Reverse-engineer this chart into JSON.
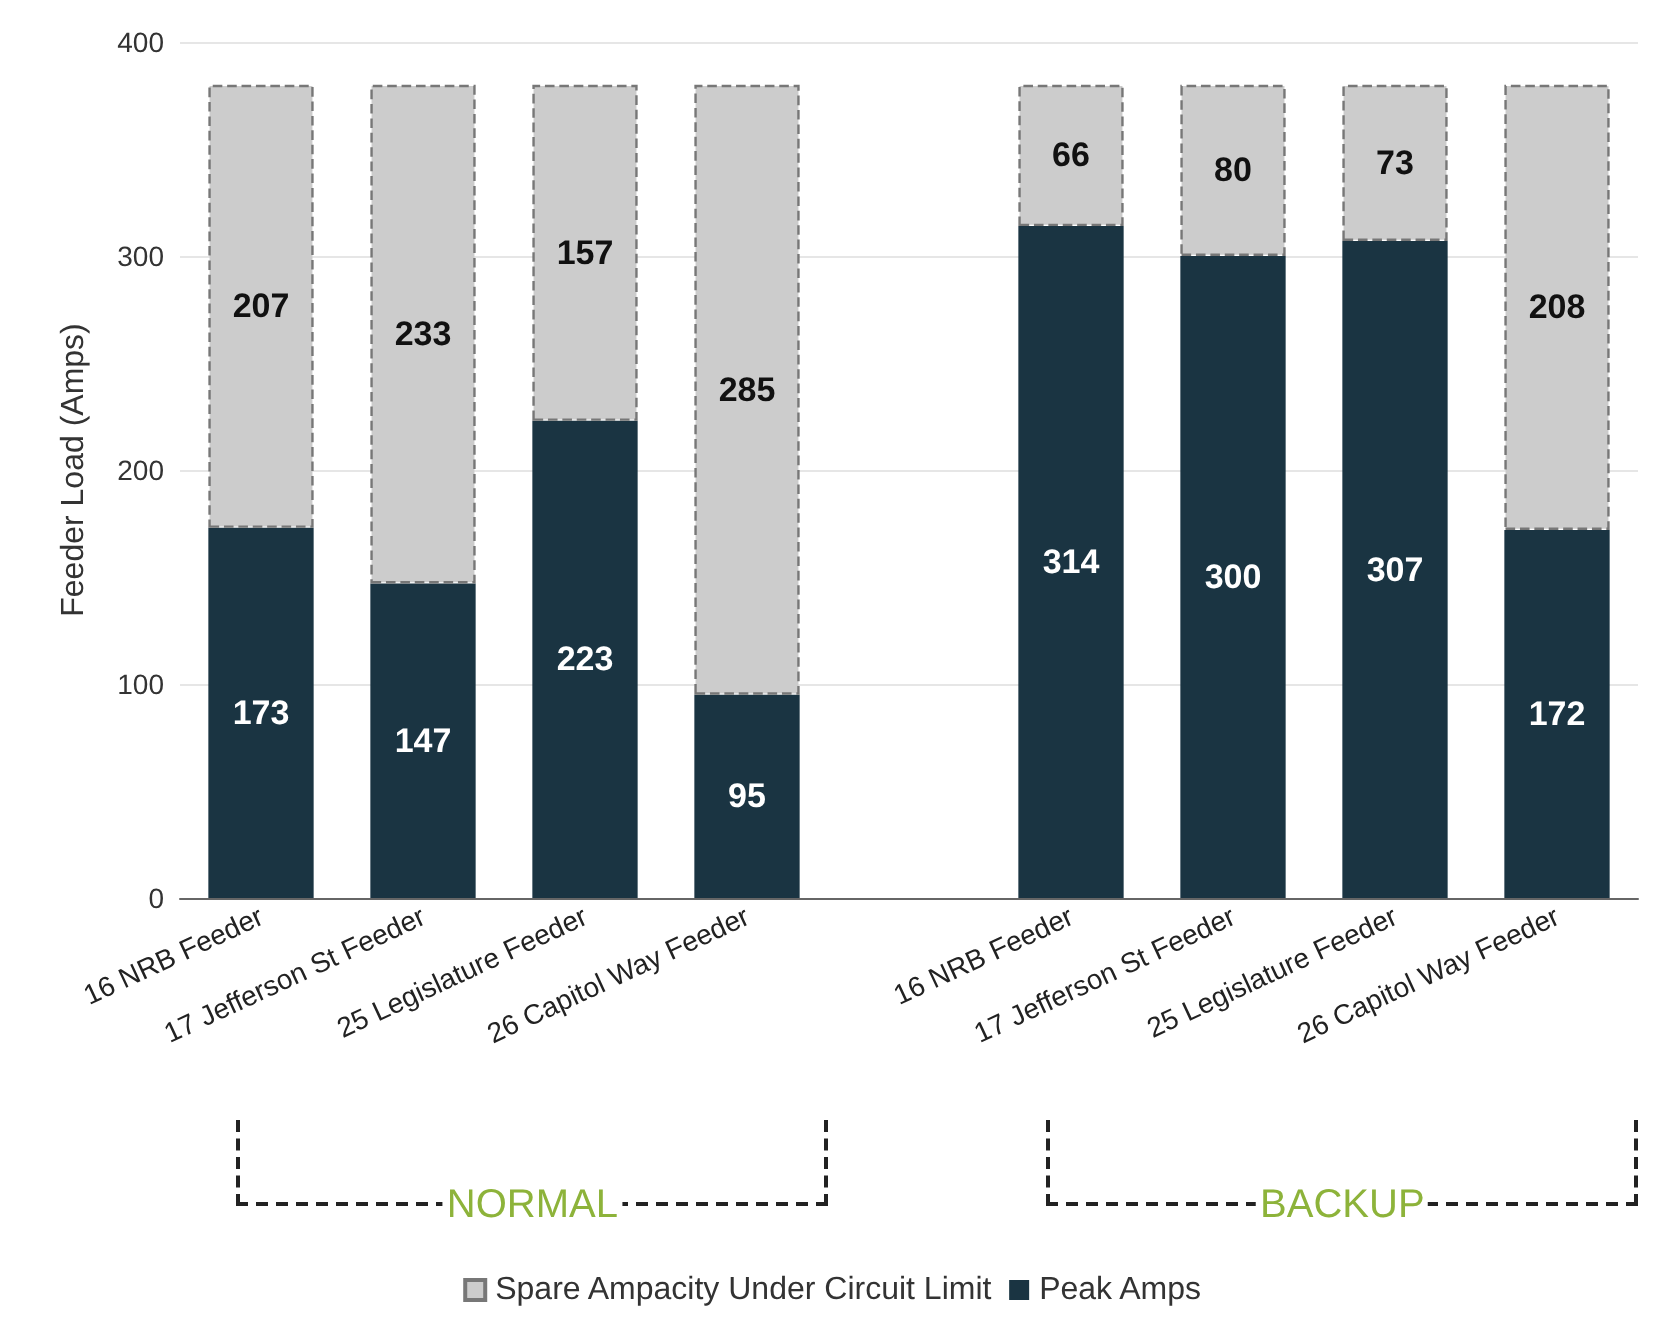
{
  "chart_data": {
    "type": "bar",
    "stacked": true,
    "ylabel": "Feeder Load (Amps)",
    "categories": [
      "16 NRB Feeder",
      "17 Jefferson St Feeder",
      "25 Legislature Feeder",
      "26 Capitol Way Feeder",
      null,
      "16 NRB Feeder",
      "17 Jefferson St Feeder",
      "25 Legislature Feeder",
      "26 Capitol Way Feeder"
    ],
    "series": [
      {
        "name": "Peak Amps",
        "color": "#1a3442",
        "values": [
          173,
          147,
          223,
          95,
          null,
          314,
          300,
          307,
          172
        ]
      },
      {
        "name": "Spare Ampacity Under Circuit Limit",
        "color": "#cccccc",
        "line_style": "dashed",
        "values": [
          207,
          233,
          157,
          285,
          null,
          66,
          80,
          73,
          208
        ]
      }
    ],
    "ylim": [
      0,
      400
    ],
    "yticks": [
      0,
      100,
      200,
      300,
      400
    ],
    "grid": "y",
    "legend": "bottom",
    "data_labels": true,
    "annotations": [
      "NORMAL",
      "BACKUP"
    ]
  }
}
